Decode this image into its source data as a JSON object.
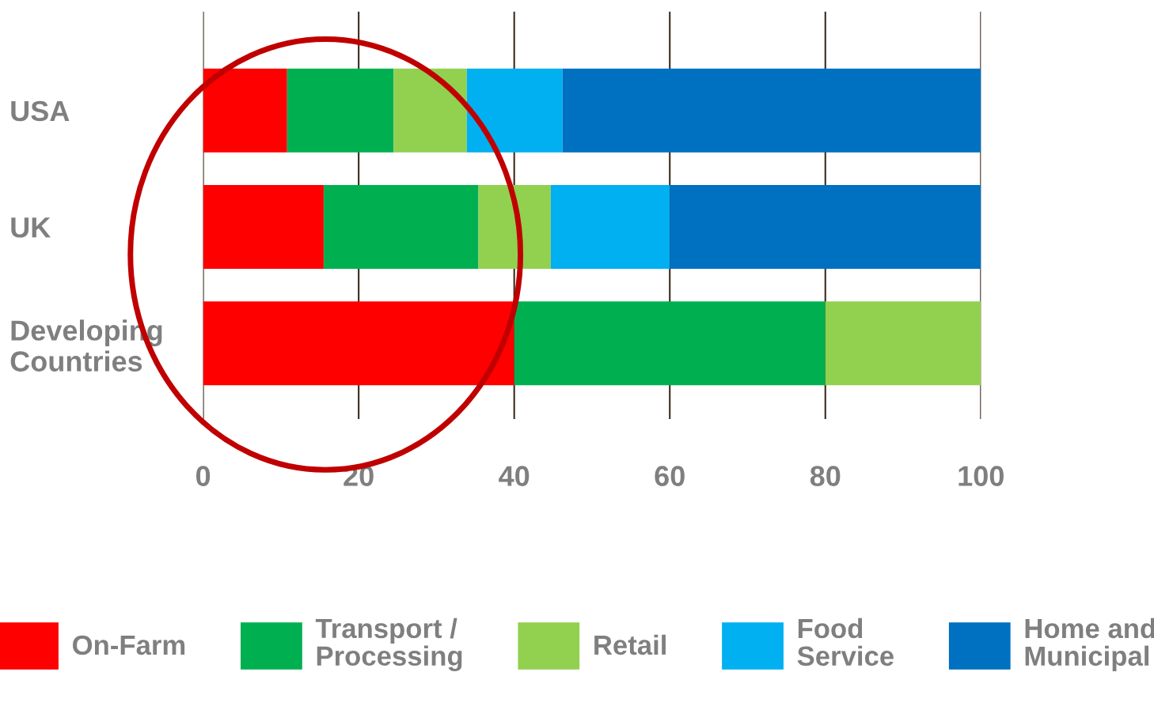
{
  "chart_data": {
    "type": "bar",
    "orientation": "horizontal",
    "stacked": true,
    "categories": [
      "USA",
      "UK",
      "Developing\nCountries"
    ],
    "series": [
      {
        "name": "On-Farm",
        "color": "#ff0000",
        "values": [
          10.8,
          15.5,
          40
        ]
      },
      {
        "name": "Transport /\nProcessing",
        "color": "#00b050",
        "values": [
          13.7,
          19.9,
          40
        ]
      },
      {
        "name": "Retail",
        "color": "#92d050",
        "values": [
          9.4,
          9.3,
          20
        ]
      },
      {
        "name": "Food\nService",
        "color": "#00b0f0",
        "values": [
          12.3,
          15.3,
          null
        ]
      },
      {
        "name": "Home and\nMunicipal",
        "color": "#0070c0",
        "values": [
          53.8,
          40,
          null
        ]
      }
    ],
    "xlim": [
      0,
      100
    ],
    "xticks": [
      0,
      20,
      40,
      60,
      80,
      100
    ],
    "grid": "x",
    "legend": "bottom"
  }
}
